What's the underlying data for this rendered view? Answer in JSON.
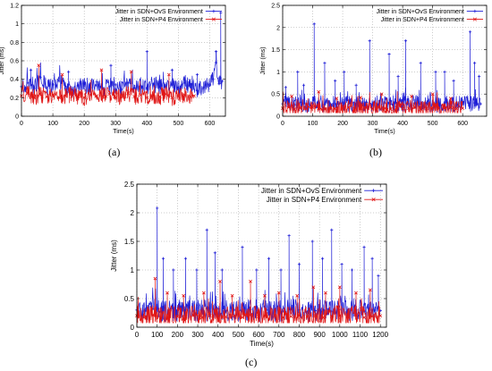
{
  "captions": [
    "(a)",
    "(b)",
    "(c)"
  ],
  "colors": {
    "ovs": "#1f1fd6",
    "p4": "#e01515",
    "axis": "#000000",
    "grid": "#9a9a9a"
  },
  "chart_data": [
    {
      "type": "line",
      "panel": "(a)",
      "title": "",
      "xlabel": "Time(s)",
      "ylabel": "Jitter (ms)",
      "xlim": [
        0,
        650
      ],
      "ylim": [
        0,
        1.2
      ],
      "xticks": [
        0,
        100,
        200,
        300,
        400,
        500,
        600
      ],
      "yticks": [
        0,
        0.2,
        0.4,
        0.6,
        0.8,
        1,
        1.2
      ],
      "grid": true,
      "legend": "top-right",
      "series": [
        {
          "name": "Jitter in SDN+OvS Environment",
          "marker": "plus",
          "x": [
            0,
            20,
            40,
            60,
            80,
            100,
            120,
            140,
            160,
            180,
            200,
            220,
            240,
            260,
            280,
            300,
            320,
            340,
            360,
            380,
            400,
            420,
            440,
            460,
            480,
            500,
            520,
            540,
            560,
            580,
            600,
            610,
            620,
            630,
            640
          ],
          "y": [
            0.32,
            0.36,
            0.3,
            0.42,
            0.31,
            0.34,
            0.38,
            0.3,
            0.29,
            0.33,
            0.35,
            0.31,
            0.37,
            0.3,
            0.32,
            0.34,
            0.29,
            0.36,
            0.31,
            0.33,
            0.3,
            0.35,
            0.32,
            0.31,
            0.34,
            0.3,
            0.36,
            0.31,
            0.28,
            0.31,
            0.34,
            0.4,
            0.58,
            0.35,
            0.38
          ],
          "spikes": [
            [
              30,
              0.5
            ],
            [
              150,
              0.48
            ],
            [
              285,
              0.55
            ],
            [
              400,
              0.7
            ],
            [
              480,
              0.5
            ],
            [
              560,
              0.45
            ],
            [
              620,
              0.7
            ],
            [
              635,
              1.12
            ]
          ]
        },
        {
          "name": "Jitter in SDN+P4 Environment",
          "marker": "cross",
          "x": [
            0,
            20,
            40,
            60,
            80,
            100,
            120,
            140,
            160,
            180,
            200,
            220,
            240,
            260,
            280,
            300,
            320,
            340,
            360,
            380,
            400,
            420,
            440,
            460,
            480,
            500,
            520,
            540,
            550
          ],
          "y": [
            0.22,
            0.25,
            0.2,
            0.24,
            0.21,
            0.23,
            0.2,
            0.22,
            0.24,
            0.21,
            0.2,
            0.23,
            0.22,
            0.21,
            0.24,
            0.2,
            0.22,
            0.25,
            0.21,
            0.23,
            0.2,
            0.22,
            0.21,
            0.24,
            0.2,
            0.22,
            0.23,
            0.21,
            0.22
          ],
          "spikes": [
            [
              55,
              0.55
            ],
            [
              130,
              0.45
            ],
            [
              255,
              0.5
            ],
            [
              350,
              0.48
            ],
            [
              470,
              0.45
            ]
          ]
        }
      ]
    },
    {
      "type": "line",
      "panel": "(b)",
      "title": "",
      "xlabel": "Time(s)",
      "ylabel": "Jitter (ms)",
      "xlim": [
        0,
        680
      ],
      "ylim": [
        0,
        2.5
      ],
      "xticks": [
        0,
        100,
        200,
        300,
        400,
        500,
        600
      ],
      "yticks": [
        0,
        0.5,
        1,
        1.5,
        2,
        2.5
      ],
      "grid": true,
      "legend": "top-right",
      "series": [
        {
          "name": "Jitter in SDN+OvS Environment",
          "marker": "plus",
          "x": [
            0,
            20,
            40,
            60,
            80,
            100,
            120,
            140,
            160,
            180,
            200,
            220,
            240,
            260,
            280,
            300,
            320,
            340,
            360,
            380,
            400,
            420,
            440,
            460,
            480,
            500,
            520,
            540,
            560,
            580,
            600,
            620,
            640,
            660
          ],
          "y": [
            0.28,
            0.3,
            0.26,
            0.31,
            0.27,
            0.29,
            0.3,
            0.26,
            0.28,
            0.27,
            0.3,
            0.28,
            0.26,
            0.29,
            0.31,
            0.27,
            0.28,
            0.3,
            0.27,
            0.29,
            0.26,
            0.28,
            0.3,
            0.27,
            0.29,
            0.28,
            0.26,
            0.3,
            0.28,
            0.27,
            0.3,
            0.29,
            0.3,
            0.28
          ],
          "spikes": [
            [
              10,
              0.65
            ],
            [
              50,
              1.0
            ],
            [
              70,
              0.7
            ],
            [
              105,
              2.08
            ],
            [
              140,
              1.2
            ],
            [
              175,
              0.8
            ],
            [
              205,
              1.0
            ],
            [
              245,
              0.7
            ],
            [
              290,
              1.7
            ],
            [
              355,
              1.4
            ],
            [
              385,
              0.9
            ],
            [
              410,
              1.7
            ],
            [
              460,
              1.2
            ],
            [
              510,
              1.0
            ],
            [
              540,
              1.0
            ],
            [
              570,
              0.8
            ],
            [
              625,
              1.9
            ],
            [
              640,
              1.2
            ],
            [
              655,
              0.9
            ]
          ]
        },
        {
          "name": "Jitter in SDN+P4 Environment",
          "marker": "cross",
          "x": [
            0,
            20,
            40,
            60,
            80,
            100,
            120,
            140,
            160,
            180,
            200,
            220,
            240,
            260,
            280,
            300,
            320,
            340,
            360,
            380,
            400,
            420,
            440,
            460,
            480,
            500,
            520,
            540,
            560,
            580,
            600
          ],
          "y": [
            0.18,
            0.2,
            0.16,
            0.19,
            0.17,
            0.2,
            0.18,
            0.16,
            0.19,
            0.17,
            0.18,
            0.2,
            0.16,
            0.18,
            0.19,
            0.17,
            0.2,
            0.18,
            0.16,
            0.19,
            0.17,
            0.18,
            0.2,
            0.16,
            0.18,
            0.19,
            0.17,
            0.18,
            0.2,
            0.17,
            0.18
          ],
          "spikes": [
            [
              30,
              0.45
            ],
            [
              120,
              0.55
            ],
            [
              180,
              0.4
            ],
            [
              260,
              0.42
            ],
            [
              330,
              0.5
            ],
            [
              430,
              0.45
            ],
            [
              500,
              0.5
            ],
            [
              560,
              0.4
            ]
          ]
        }
      ]
    },
    {
      "type": "line",
      "panel": "(c)",
      "title": "",
      "xlabel": "Time(s)",
      "ylabel": "Jitter (ms)",
      "xlim": [
        0,
        1230
      ],
      "ylim": [
        0,
        2.5
      ],
      "xticks": [
        0,
        100,
        200,
        300,
        400,
        500,
        600,
        700,
        800,
        900,
        1000,
        1100,
        1200
      ],
      "yticks": [
        0,
        0.5,
        1,
        1.5,
        2,
        2.5
      ],
      "grid": true,
      "legend": "top-right",
      "series": [
        {
          "name": "Jitter in SDN+OvS Environment",
          "marker": "plus",
          "x": [
            0,
            40,
            80,
            120,
            160,
            200,
            240,
            280,
            320,
            360,
            400,
            440,
            480,
            520,
            560,
            600,
            640,
            680,
            720,
            760,
            800,
            840,
            880,
            920,
            960,
            1000,
            1040,
            1080,
            1120,
            1160,
            1200
          ],
          "y": [
            0.3,
            0.28,
            0.32,
            0.27,
            0.3,
            0.29,
            0.31,
            0.28,
            0.3,
            0.27,
            0.32,
            0.29,
            0.3,
            0.28,
            0.31,
            0.27,
            0.3,
            0.29,
            0.28,
            0.31,
            0.3,
            0.27,
            0.29,
            0.3,
            0.28,
            0.31,
            0.29,
            0.3,
            0.28,
            0.3,
            0.29
          ],
          "spikes": [
            [
              100,
              2.08
            ],
            [
              130,
              1.2
            ],
            [
              180,
              1.0
            ],
            [
              240,
              1.2
            ],
            [
              295,
              1.0
            ],
            [
              345,
              1.7
            ],
            [
              385,
              1.3
            ],
            [
              420,
              1.0
            ],
            [
              520,
              1.4
            ],
            [
              590,
              1.0
            ],
            [
              650,
              1.2
            ],
            [
              710,
              1.0
            ],
            [
              750,
              1.6
            ],
            [
              800,
              1.1
            ],
            [
              865,
              1.5
            ],
            [
              915,
              1.2
            ],
            [
              960,
              1.7
            ],
            [
              1010,
              1.1
            ],
            [
              1060,
              1.0
            ],
            [
              1120,
              1.4
            ],
            [
              1160,
              1.2
            ],
            [
              1190,
              0.9
            ]
          ]
        },
        {
          "name": "Jitter in SDN+P4 Environment",
          "marker": "cross",
          "x": [
            0,
            40,
            80,
            120,
            160,
            200,
            240,
            280,
            320,
            360,
            400,
            440,
            480,
            520,
            560,
            600,
            640,
            680,
            720,
            760,
            800,
            840,
            880,
            920,
            960,
            1000,
            1040,
            1080,
            1120,
            1160,
            1200
          ],
          "y": [
            0.2,
            0.18,
            0.21,
            0.17,
            0.2,
            0.19,
            0.18,
            0.21,
            0.17,
            0.2,
            0.19,
            0.18,
            0.2,
            0.17,
            0.21,
            0.19,
            0.18,
            0.2,
            0.17,
            0.19,
            0.21,
            0.18,
            0.2,
            0.17,
            0.19,
            0.2,
            0.18,
            0.21,
            0.17,
            0.19,
            0.2
          ],
          "spikes": [
            [
              90,
              0.85
            ],
            [
              150,
              0.6
            ],
            [
              230,
              0.55
            ],
            [
              330,
              0.6
            ],
            [
              410,
              0.8
            ],
            [
              470,
              0.55
            ],
            [
              560,
              0.8
            ],
            [
              630,
              0.55
            ],
            [
              700,
              0.6
            ],
            [
              790,
              0.55
            ],
            [
              870,
              0.7
            ],
            [
              930,
              0.6
            ],
            [
              1000,
              0.7
            ],
            [
              1080,
              0.6
            ],
            [
              1150,
              0.65
            ]
          ]
        }
      ]
    }
  ]
}
